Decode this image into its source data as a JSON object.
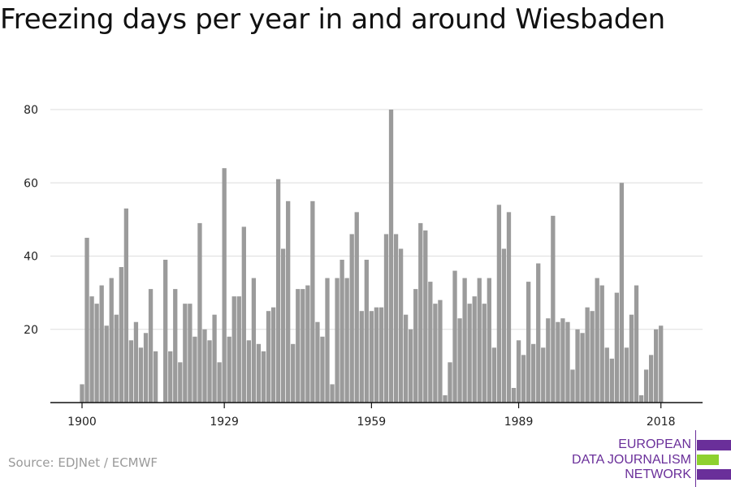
{
  "title": "Freezing days per year in and around Wiesbaden",
  "source": "Source: EDJNet / ECMWF",
  "logo": {
    "lines": [
      "EUROPEAN",
      "DATA JOURNALISM",
      "NETWORK"
    ],
    "colors": {
      "purple": "#6a2f9a",
      "green": "#8ed12f"
    }
  },
  "chart_data": {
    "type": "bar",
    "title": "Freezing days per year in and around Wiesbaden",
    "xlabel": "",
    "ylabel": "",
    "x_ticks": [
      1900,
      1929,
      1959,
      1989,
      2018
    ],
    "y_ticks": [
      20,
      40,
      60,
      80
    ],
    "ylim": [
      0,
      80
    ],
    "grid": true,
    "bar_color": "#9b9b9b",
    "categories": [
      1900,
      1901,
      1902,
      1903,
      1904,
      1905,
      1906,
      1907,
      1908,
      1909,
      1910,
      1911,
      1912,
      1913,
      1914,
      1915,
      1916,
      1917,
      1918,
      1919,
      1920,
      1921,
      1922,
      1923,
      1924,
      1925,
      1926,
      1927,
      1928,
      1929,
      1930,
      1931,
      1932,
      1933,
      1934,
      1935,
      1936,
      1937,
      1938,
      1939,
      1940,
      1941,
      1942,
      1943,
      1944,
      1945,
      1946,
      1947,
      1948,
      1949,
      1950,
      1951,
      1952,
      1953,
      1954,
      1955,
      1956,
      1957,
      1958,
      1959,
      1960,
      1961,
      1962,
      1963,
      1964,
      1965,
      1966,
      1967,
      1968,
      1969,
      1970,
      1971,
      1972,
      1973,
      1974,
      1975,
      1976,
      1977,
      1978,
      1979,
      1980,
      1981,
      1982,
      1983,
      1984,
      1985,
      1986,
      1987,
      1988,
      1989,
      1990,
      1991,
      1992,
      1993,
      1994,
      1995,
      1996,
      1997,
      1998,
      1999,
      2000,
      2001,
      2002,
      2003,
      2004,
      2005,
      2006,
      2007,
      2008,
      2009,
      2010,
      2011,
      2012,
      2013,
      2014,
      2015,
      2016,
      2017,
      2018
    ],
    "values": [
      5,
      45,
      29,
      27,
      32,
      21,
      34,
      24,
      37,
      53,
      17,
      22,
      15,
      19,
      31,
      14,
      0,
      39,
      14,
      31,
      11,
      27,
      27,
      18,
      49,
      20,
      17,
      24,
      11,
      64,
      18,
      29,
      29,
      48,
      17,
      34,
      16,
      14,
      25,
      26,
      61,
      42,
      55,
      16,
      31,
      31,
      32,
      55,
      22,
      18,
      34,
      5,
      34,
      39,
      34,
      46,
      52,
      25,
      39,
      25,
      26,
      26,
      46,
      80,
      46,
      42,
      24,
      20,
      31,
      49,
      47,
      33,
      27,
      28,
      2,
      11,
      36,
      23,
      34,
      27,
      29,
      34,
      27,
      34,
      15,
      54,
      42,
      52,
      4,
      17,
      13,
      33,
      16,
      38,
      15,
      23,
      51,
      22,
      23,
      22,
      9,
      20,
      19,
      26,
      25,
      34,
      32,
      15,
      12,
      30,
      60,
      15,
      24,
      32,
      2,
      9,
      13,
      20,
      21
    ]
  }
}
